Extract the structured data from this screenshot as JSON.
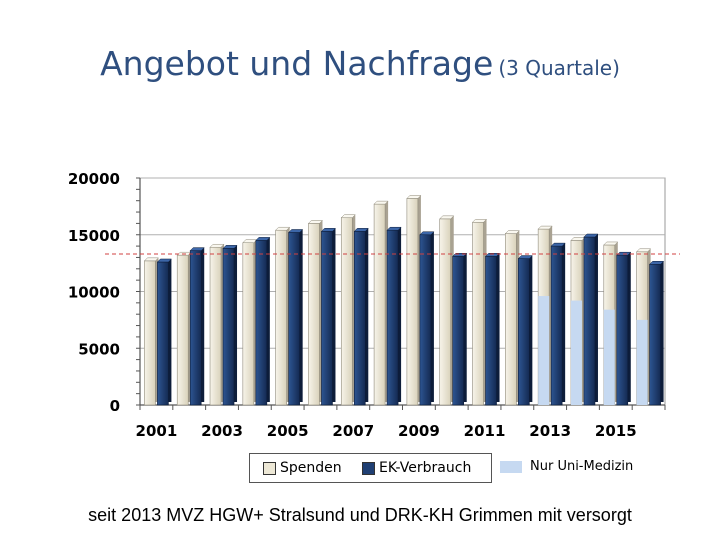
{
  "title": {
    "main": "Angebot und Nachfrage",
    "sub": "(3 Quartale)"
  },
  "footnote": "seit 2013 MVZ HGW+ Stralsund und DRK-KH Grimmen mit versorgt",
  "colors": {
    "spenden": "#ede8d6",
    "ek": "#1f3f73",
    "uni": "#c6d9f1",
    "ref_line": "#d04040",
    "title": "#2f4f7f"
  },
  "chart_data": {
    "type": "bar",
    "title": "Angebot und Nachfrage (3 Quartale)",
    "categories": [
      "2001",
      "2002",
      "2003",
      "2004",
      "2005",
      "2006",
      "2007",
      "2008",
      "2009",
      "2010",
      "2011",
      "2012",
      "2013",
      "2014",
      "2015",
      "2016"
    ],
    "x_tick_labels": [
      "2001",
      "2003",
      "2005",
      "2007",
      "2009",
      "2011",
      "2013",
      "2015"
    ],
    "y_ticks": [
      "0",
      "5000",
      "10000",
      "15000",
      "20000"
    ],
    "ylim": [
      0,
      20000
    ],
    "reference_line": 13300,
    "series": [
      {
        "name": "Spenden",
        "values": [
          12700,
          13200,
          13900,
          14300,
          15400,
          16000,
          16500,
          17700,
          18200,
          16400,
          16100,
          15100,
          15500,
          14500,
          14100,
          13500
        ]
      },
      {
        "name": "EK-Verbrauch",
        "values": [
          12600,
          13600,
          13800,
          14500,
          15200,
          15300,
          15300,
          15400,
          15000,
          13100,
          13100,
          12900,
          14000,
          14800,
          13200,
          12400
        ]
      },
      {
        "name": "Nur Uni-Medizin",
        "values": [
          null,
          null,
          null,
          null,
          null,
          null,
          null,
          null,
          null,
          null,
          null,
          null,
          9600,
          9200,
          8400,
          7500
        ]
      }
    ],
    "legend": {
      "spenden": "Spenden",
      "ek": "EK-Verbrauch",
      "uni": "Nur Uni-Medizin"
    }
  }
}
